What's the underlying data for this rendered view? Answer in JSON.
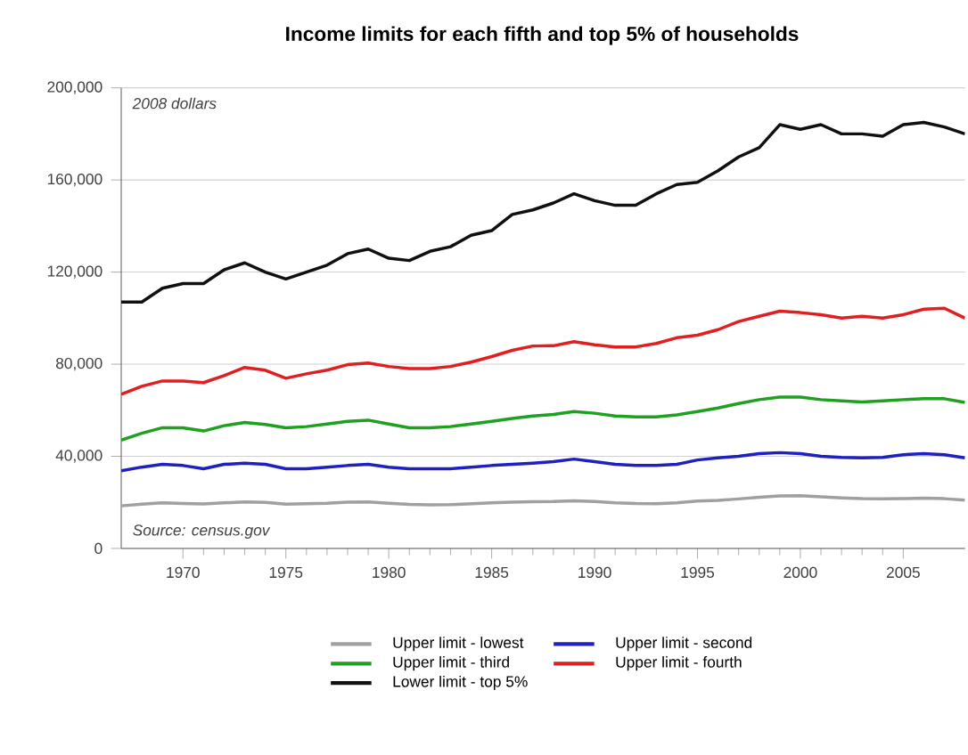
{
  "chart_data": {
    "type": "line",
    "title": "Income limits for each fifth and top 5% of households",
    "x": [
      1967,
      1968,
      1969,
      1970,
      1971,
      1972,
      1973,
      1974,
      1975,
      1976,
      1977,
      1978,
      1979,
      1980,
      1981,
      1982,
      1983,
      1984,
      1985,
      1986,
      1987,
      1988,
      1989,
      1990,
      1991,
      1992,
      1993,
      1994,
      1995,
      1996,
      1997,
      1998,
      1999,
      2000,
      2001,
      2002,
      2003,
      2004,
      2005,
      2006,
      2007,
      2008
    ],
    "series": [
      {
        "name": "Upper limit - lowest",
        "color": "#a0a0a0",
        "values": [
          18500,
          19200,
          19800,
          19500,
          19300,
          19800,
          20200,
          20000,
          19200,
          19400,
          19600,
          20100,
          20200,
          19600,
          19100,
          18900,
          19000,
          19400,
          19800,
          20100,
          20300,
          20400,
          20700,
          20400,
          19800,
          19500,
          19400,
          19800,
          20600,
          20900,
          21500,
          22200,
          22800,
          22900,
          22400,
          21900,
          21600,
          21500,
          21600,
          21800,
          21600,
          21000
        ]
      },
      {
        "name": "Upper limit - second",
        "color": "#2020c0",
        "values": [
          33700,
          35300,
          36500,
          36000,
          34600,
          36500,
          37000,
          36500,
          34600,
          34600,
          35300,
          36000,
          36500,
          35300,
          34600,
          34600,
          34600,
          35300,
          36000,
          36500,
          37000,
          37700,
          38800,
          37700,
          36500,
          36000,
          36000,
          36500,
          38400,
          39300,
          40000,
          41200,
          41600,
          41200,
          40000,
          39500,
          39300,
          39500,
          40700,
          41200,
          40700,
          39300
        ]
      },
      {
        "name": "Upper limit - third",
        "color": "#20a020",
        "values": [
          47000,
          50000,
          52400,
          52400,
          51000,
          53300,
          54700,
          53800,
          52400,
          52900,
          54000,
          55200,
          55700,
          54000,
          52400,
          52400,
          52900,
          54000,
          55200,
          56400,
          57500,
          58200,
          59400,
          58700,
          57500,
          57100,
          57100,
          58000,
          59400,
          61000,
          62900,
          64600,
          65700,
          65700,
          64600,
          64100,
          63600,
          64100,
          64600,
          65000,
          65000,
          63400
        ]
      },
      {
        "name": "Upper limit - fourth",
        "color": "#e02020",
        "values": [
          66900,
          70400,
          72700,
          72700,
          72000,
          75000,
          78600,
          77400,
          73900,
          75800,
          77400,
          79800,
          80500,
          79000,
          78100,
          78100,
          79000,
          80900,
          83300,
          86000,
          87900,
          88000,
          89800,
          88400,
          87500,
          87500,
          89000,
          91500,
          92600,
          95000,
          98500,
          100800,
          103000,
          102400,
          101500,
          100000,
          100800,
          100000,
          101500,
          103900,
          104300,
          100000
        ]
      },
      {
        "name": "Lower limit - top 5%",
        "color": "#101010",
        "values": [
          107000,
          107000,
          113000,
          115000,
          115000,
          121000,
          124000,
          120000,
          117000,
          120000,
          123000,
          128000,
          130000,
          126000,
          125000,
          129000,
          131000,
          136000,
          138000,
          145000,
          147000,
          150000,
          154000,
          151000,
          149000,
          149000,
          154000,
          158000,
          159000,
          164000,
          170000,
          174000,
          184000,
          182000,
          184000,
          180000,
          180000,
          179000,
          184000,
          185000,
          183000,
          180000
        ]
      }
    ],
    "xlim": [
      1967,
      2008
    ],
    "xticks": [
      1970,
      1975,
      1980,
      1985,
      1990,
      1995,
      2000,
      2005
    ],
    "ylim": [
      0,
      200000
    ],
    "yticks": [
      {
        "value": 0,
        "label": "0"
      },
      {
        "value": 40000,
        "label": "40,000"
      },
      {
        "value": 80000,
        "label": "80,000"
      },
      {
        "value": 120000,
        "label": "120,000"
      },
      {
        "value": 160000,
        "label": "160,000"
      },
      {
        "value": 200000,
        "label": "200,000"
      }
    ],
    "grid": "y",
    "legend": "bottom",
    "annotations": [
      "2008 dollars",
      "Source: census.gov"
    ]
  }
}
